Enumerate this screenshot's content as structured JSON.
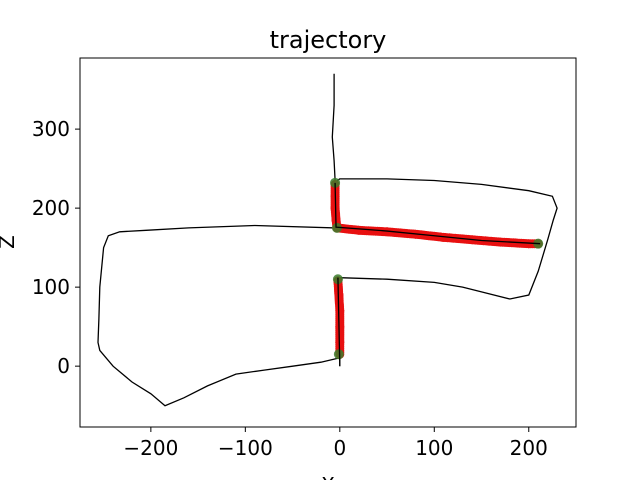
{
  "chart_data": {
    "type": "line",
    "title": "trajectory",
    "xlabel": "X",
    "ylabel": "Z",
    "xlim": [
      -275,
      250
    ],
    "ylim": [
      -77,
      390
    ],
    "xticks": [
      -200,
      -100,
      0,
      100,
      200
    ],
    "yticks": [
      0,
      100,
      200,
      300
    ],
    "xtick_labels": [
      "−200",
      "−100",
      "0",
      "100",
      "200"
    ],
    "ytick_labels": [
      "0",
      "100",
      "200",
      "300"
    ],
    "grid": false,
    "series": [
      {
        "kind": "line",
        "color": "#000000",
        "points": [
          [
            -6,
            370
          ],
          [
            -6,
            330
          ],
          [
            -8,
            290
          ],
          [
            -6,
            260
          ],
          [
            -5,
            235
          ],
          [
            -3,
            215
          ],
          [
            -4,
            190
          ],
          [
            -5,
            175
          ],
          [
            -90,
            178
          ],
          [
            -160,
            175
          ],
          [
            -205,
            172
          ],
          [
            -233,
            170
          ],
          [
            -245,
            165
          ],
          [
            -250,
            150
          ],
          [
            -254,
            100
          ],
          [
            -255,
            60
          ],
          [
            -256,
            30
          ],
          [
            -254,
            20
          ],
          [
            -240,
            0
          ],
          [
            -220,
            -20
          ],
          [
            -200,
            -35
          ],
          [
            -185,
            -50
          ],
          [
            -165,
            -40
          ],
          [
            -140,
            -25
          ],
          [
            -110,
            -10
          ],
          [
            -80,
            -5
          ],
          [
            -50,
            0
          ],
          [
            -20,
            5
          ],
          [
            -2,
            10
          ],
          [
            0,
            10
          ],
          [
            0,
            0
          ]
        ]
      },
      {
        "kind": "line",
        "color": "#000000",
        "points": [
          [
            -3,
            235
          ],
          [
            0,
            237
          ],
          [
            50,
            237
          ],
          [
            100,
            235
          ],
          [
            150,
            230
          ],
          [
            200,
            222
          ],
          [
            225,
            215
          ],
          [
            230,
            200
          ],
          [
            226,
            185
          ],
          [
            220,
            160
          ],
          [
            210,
            120
          ],
          [
            200,
            90
          ],
          [
            180,
            85
          ],
          [
            150,
            94
          ],
          [
            130,
            100
          ],
          [
            100,
            106
          ],
          [
            50,
            110
          ],
          [
            0,
            112
          ],
          [
            -3,
            112
          ],
          [
            -2,
            90
          ],
          [
            -1,
            60
          ],
          [
            0,
            30
          ],
          [
            0,
            10
          ]
        ]
      },
      {
        "kind": "scatter",
        "color": "#e81010",
        "points": [
          [
            -5,
            230
          ],
          [
            -5,
            215
          ],
          [
            -5,
            200
          ],
          [
            -4,
            185
          ],
          [
            -3,
            175
          ],
          [
            20,
            172
          ],
          [
            50,
            170
          ],
          [
            80,
            167
          ],
          [
            110,
            163
          ],
          [
            140,
            160
          ],
          [
            170,
            157
          ],
          [
            200,
            155
          ],
          [
            210,
            155
          ],
          [
            -2,
            108
          ],
          [
            -1,
            90
          ],
          [
            0,
            70
          ],
          [
            0,
            50
          ],
          [
            0,
            30
          ],
          [
            0,
            15
          ]
        ]
      },
      {
        "kind": "markers",
        "color": "#3a7d2c",
        "points": [
          [
            -5,
            232
          ],
          [
            -3,
            175
          ],
          [
            210,
            155
          ],
          [
            -2,
            110
          ],
          [
            -1,
            15
          ]
        ]
      }
    ]
  }
}
